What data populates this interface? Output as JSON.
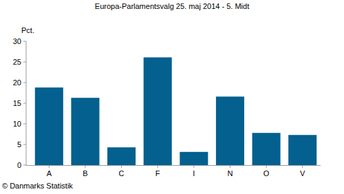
{
  "chart_data": {
    "type": "bar",
    "title": "Europa-Parlamentsvalg 25. maj 2014 - 5. Midt",
    "y_label": "Pct.",
    "source": "© Danmarks Statistik",
    "categories": [
      "A",
      "B",
      "C",
      "F",
      "I",
      "N",
      "O",
      "V"
    ],
    "values": [
      18.8,
      16.3,
      4.3,
      26.1,
      3.2,
      16.6,
      7.8,
      7.3
    ],
    "color": "#03608f",
    "ylim": [
      0,
      30
    ],
    "yticks": [
      0,
      5,
      10,
      15,
      20,
      25,
      30
    ],
    "grid": false
  }
}
